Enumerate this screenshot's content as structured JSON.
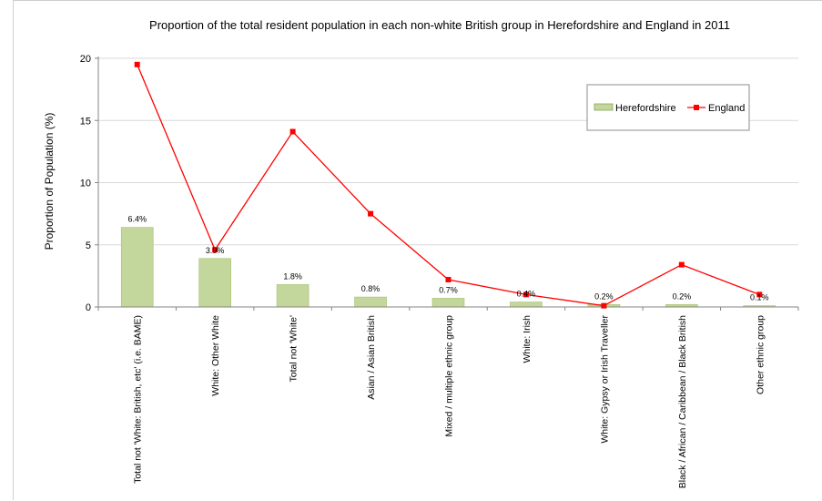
{
  "chart_data": {
    "type": "bar",
    "title": "Proportion of the total resident population in each non-white British group in Herefordshire and England in 2011",
    "ylabel": "Proportion of Population (%)",
    "xlabel": "",
    "ylim": [
      0,
      20
    ],
    "yticks": [
      "0",
      "5",
      "10",
      "15",
      "20"
    ],
    "grid": true,
    "legend_position": "top-right",
    "categories": [
      "Total not 'White: British, etc' (i.e. BAME)",
      "White: Other White",
      "Total not 'White'",
      "Asian / Asian British",
      "Mixed / multiple ethnic group",
      "White: Irish",
      "White: Gypsy or Irish Traveller",
      "Black / African / Caribbean / Black British",
      "Other ethnic group"
    ],
    "series": [
      {
        "name": "Herefordshire",
        "kind": "bar",
        "color": "#c3d69b",
        "values": [
          6.4,
          3.9,
          1.8,
          0.8,
          0.7,
          0.4,
          0.2,
          0.2,
          0.1
        ],
        "data_labels": [
          "6.4%",
          "3.9%",
          "1.8%",
          "0.8%",
          "0.7%",
          "0.4%",
          "0.2%",
          "0.2%",
          "0.1%"
        ]
      },
      {
        "name": "England",
        "kind": "line",
        "color": "#ff0000",
        "values": [
          19.5,
          4.6,
          14.1,
          7.5,
          2.2,
          1.0,
          0.1,
          3.4,
          1.0
        ]
      }
    ]
  }
}
